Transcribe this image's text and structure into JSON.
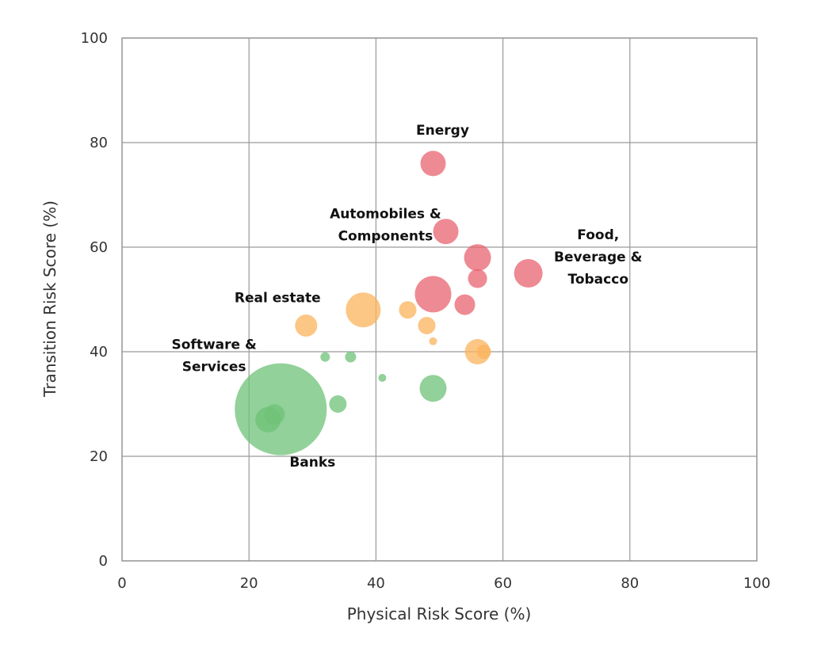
{
  "chart_data": {
    "type": "scatter",
    "title": "",
    "xlabel": "Physical Risk Score (%)",
    "ylabel": "Transition Risk Score (%)",
    "xlim": [
      0,
      100
    ],
    "ylim": [
      0,
      100
    ],
    "xticks": [
      "0",
      "20",
      "40",
      "60",
      "80",
      "100"
    ],
    "yticks": [
      "0",
      "20",
      "40",
      "60",
      "80",
      "100"
    ],
    "grid": true,
    "legend": "none",
    "colors": {
      "red": "#e8636f",
      "orange": "#fbb35c",
      "green": "#6dc277"
    },
    "points": [
      {
        "x": 25,
        "y": 29,
        "size": 58,
        "color": "green"
      },
      {
        "x": 23,
        "y": 27,
        "size": 16,
        "color": "green"
      },
      {
        "x": 24,
        "y": 28,
        "size": 13,
        "color": "green"
      },
      {
        "x": 34,
        "y": 30,
        "size": 11,
        "color": "green"
      },
      {
        "x": 32,
        "y": 39,
        "size": 6,
        "color": "green"
      },
      {
        "x": 36,
        "y": 39,
        "size": 7,
        "color": "green"
      },
      {
        "x": 41,
        "y": 35,
        "size": 5,
        "color": "green"
      },
      {
        "x": 49,
        "y": 33,
        "size": 17,
        "color": "green"
      },
      {
        "x": 29,
        "y": 45,
        "size": 14,
        "color": "orange"
      },
      {
        "x": 38,
        "y": 48,
        "size": 22,
        "color": "orange"
      },
      {
        "x": 45,
        "y": 48,
        "size": 11,
        "color": "orange"
      },
      {
        "x": 48,
        "y": 45,
        "size": 11,
        "color": "orange"
      },
      {
        "x": 49,
        "y": 42,
        "size": 5,
        "color": "orange"
      },
      {
        "x": 56,
        "y": 40,
        "size": 16,
        "color": "orange"
      },
      {
        "x": 57,
        "y": 40,
        "size": 9,
        "color": "orange"
      },
      {
        "x": 49,
        "y": 76,
        "size": 16,
        "color": "red"
      },
      {
        "x": 51,
        "y": 63,
        "size": 16,
        "color": "red"
      },
      {
        "x": 56,
        "y": 58,
        "size": 17,
        "color": "red"
      },
      {
        "x": 56,
        "y": 54,
        "size": 12,
        "color": "red"
      },
      {
        "x": 49,
        "y": 51,
        "size": 23,
        "color": "red"
      },
      {
        "x": 54,
        "y": 49,
        "size": 13,
        "color": "red"
      },
      {
        "x": 64,
        "y": 55,
        "size": 18,
        "color": "red"
      }
    ],
    "annotations": [
      {
        "lines": [
          "Energy"
        ],
        "x": 50.5,
        "y": 81.5
      },
      {
        "lines": [
          "Automobiles &",
          "Components"
        ],
        "x": 41.5,
        "y": 65.5
      },
      {
        "lines": [
          "Food,",
          "Beverage &",
          "Tobacco"
        ],
        "x": 75,
        "y": 61.5
      },
      {
        "lines": [
          "Real estate"
        ],
        "x": 24.5,
        "y": 49.5
      },
      {
        "lines": [
          "Software &",
          "Services"
        ],
        "x": 14.5,
        "y": 40.5
      },
      {
        "lines": [
          "Banks"
        ],
        "x": 30,
        "y": 18
      }
    ]
  }
}
